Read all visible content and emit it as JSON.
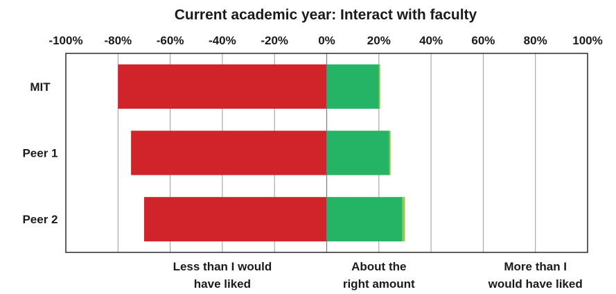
{
  "chart_data": {
    "type": "bar",
    "orientation": "horizontal",
    "stacked": "diverging",
    "title": "Current academic year: Interact with faculty",
    "categories": [
      "MIT",
      "Peer 1",
      "Peer 2"
    ],
    "x_ticks": [
      "-100%",
      "-80%",
      "-60%",
      "-40%",
      "-20%",
      "0%",
      "20%",
      "40%",
      "60%",
      "80%",
      "100%"
    ],
    "xlim": [
      -100,
      100
    ],
    "grid": true,
    "legend": "none",
    "series": [
      {
        "values": [
          -80,
          -75,
          -70
        ],
        "color": "#d0242a"
      },
      {
        "values": [
          20,
          24,
          29
        ],
        "color": "#25b365"
      },
      {
        "values": [
          0.5,
          0.5,
          1
        ],
        "color": "#8ccd4f"
      }
    ],
    "captions": [
      {
        "lines": [
          "Less than I would",
          "have liked"
        ],
        "x": -40
      },
      {
        "lines": [
          "About the",
          "right amount"
        ],
        "x": 20
      },
      {
        "lines": [
          "More than I",
          "would have liked"
        ],
        "x": 80
      }
    ]
  }
}
